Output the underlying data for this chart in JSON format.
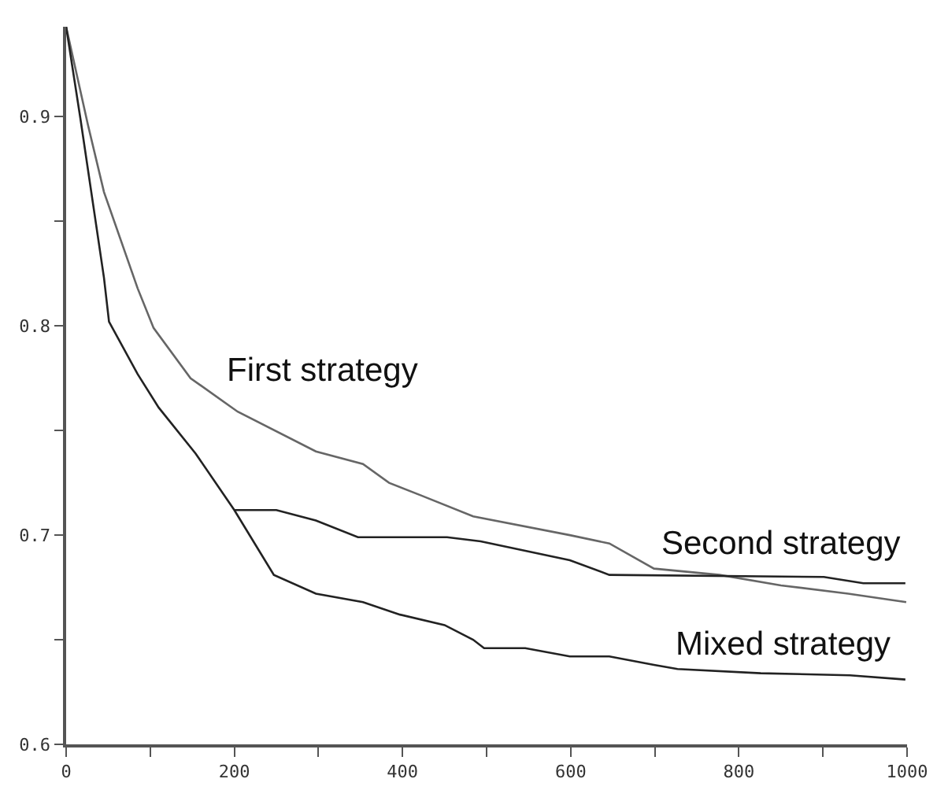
{
  "chart_data": {
    "type": "line",
    "xlim": [
      0,
      1000
    ],
    "ylim": [
      0.6,
      0.943
    ],
    "xticks": [
      0,
      {
        "value": 100,
        "label": null
      },
      200,
      {
        "value": 300,
        "label": null
      },
      400,
      {
        "value": 500,
        "label": null
      },
      600,
      {
        "value": 700,
        "label": null
      },
      800,
      {
        "value": 900,
        "label": null
      },
      1000
    ],
    "yticks": [
      0.6,
      {
        "value": 0.65,
        "label": null
      },
      0.7,
      {
        "value": 0.75,
        "label": null
      },
      0.8,
      {
        "value": 0.85,
        "label": null
      },
      0.9
    ],
    "marker": "none",
    "line_style": "solid",
    "series": [
      {
        "name": "First strategy",
        "color": "#666666",
        "x": [
          0,
          26,
          45,
          85,
          104,
          148,
          204,
          297,
          353,
          384,
          422,
          484,
          599,
          646,
          699,
          777,
          850,
          930,
          999
        ],
        "values": [
          0.943,
          0.896,
          0.864,
          0.818,
          0.799,
          0.775,
          0.759,
          0.74,
          0.734,
          0.725,
          0.719,
          0.709,
          0.7,
          0.696,
          0.684,
          0.681,
          0.676,
          0.672,
          0.668
        ]
      },
      {
        "name": "Second strategy",
        "color": "#222222",
        "x": [
          200,
          250,
          297,
          347,
          453,
          493,
          599,
          646,
          901,
          948,
          998
        ],
        "values": [
          0.712,
          0.712,
          0.707,
          0.699,
          0.699,
          0.697,
          0.688,
          0.681,
          0.68,
          0.677,
          0.677
        ]
      },
      {
        "name": "Mixed strategy",
        "color": "#222222",
        "x": [
          0,
          17,
          45,
          51,
          85,
          110,
          154,
          200,
          247,
          297,
          353,
          397,
          450,
          484,
          497,
          546,
          599,
          646,
          699,
          727,
          826,
          932,
          998
        ],
        "values": [
          0.943,
          0.899,
          0.823,
          0.802,
          0.777,
          0.761,
          0.739,
          0.712,
          0.681,
          0.672,
          0.668,
          0.662,
          0.657,
          0.65,
          0.646,
          0.646,
          0.642,
          0.642,
          0.638,
          0.636,
          0.634,
          0.633,
          0.631
        ]
      }
    ]
  }
}
